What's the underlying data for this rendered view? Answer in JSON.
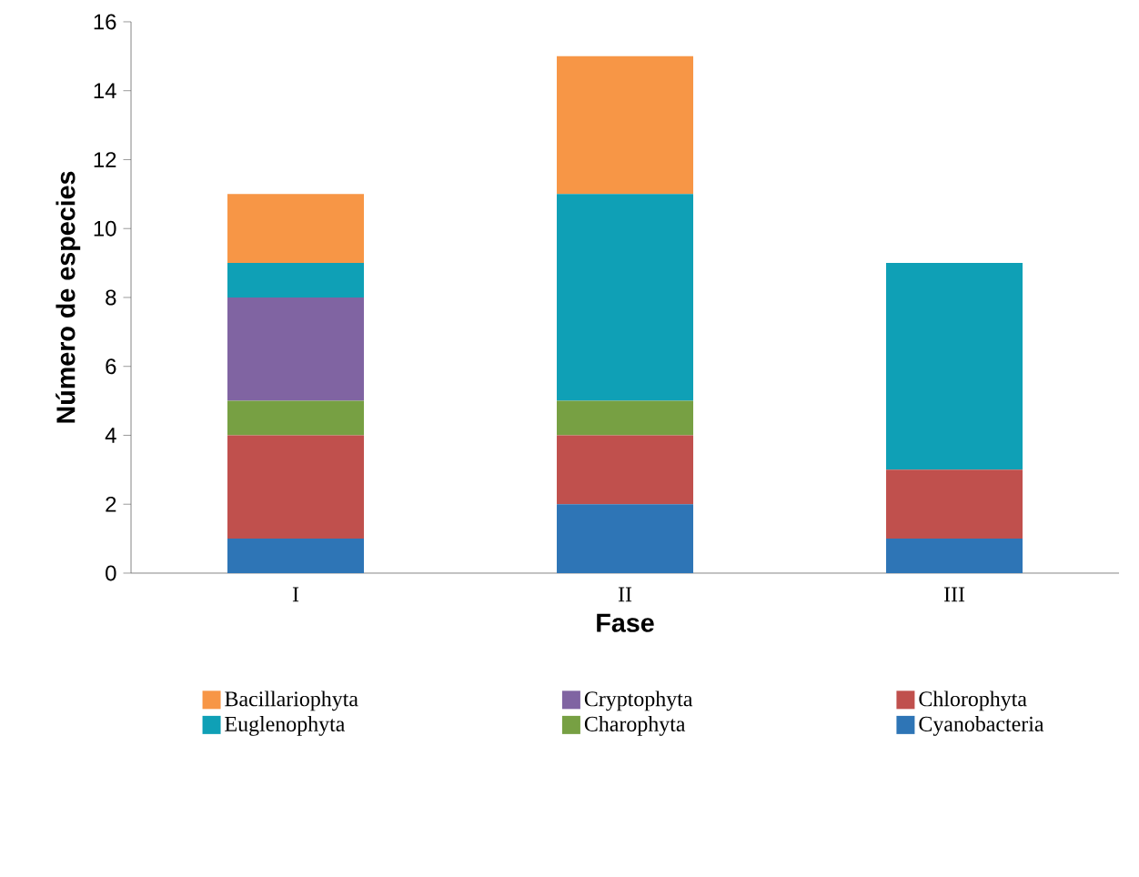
{
  "chart_data": {
    "type": "bar",
    "stacked": true,
    "xlabel": "Fase",
    "ylabel": "Número de especies",
    "categories": [
      "I",
      "II",
      "III"
    ],
    "ylim": [
      0,
      16
    ],
    "yticks": [
      0,
      2,
      4,
      6,
      8,
      10,
      12,
      14,
      16
    ],
    "legend": "bottom",
    "series": [
      {
        "name": "Cyanobacteria",
        "color": "#2e75b6",
        "values": [
          1,
          2,
          1
        ]
      },
      {
        "name": "Chlorophyta",
        "color": "#c0504d",
        "values": [
          3,
          2,
          2
        ]
      },
      {
        "name": "Charophyta",
        "color": "#77a043",
        "values": [
          1,
          1,
          0
        ]
      },
      {
        "name": "Cryptophyta",
        "color": "#8064a2",
        "values": [
          3,
          0,
          0
        ]
      },
      {
        "name": "Euglenophyta",
        "color": "#0fa0b6",
        "values": [
          1,
          6,
          6
        ]
      },
      {
        "name": "Bacillariophyta",
        "color": "#f79646",
        "values": [
          2,
          4,
          0
        ]
      }
    ]
  }
}
